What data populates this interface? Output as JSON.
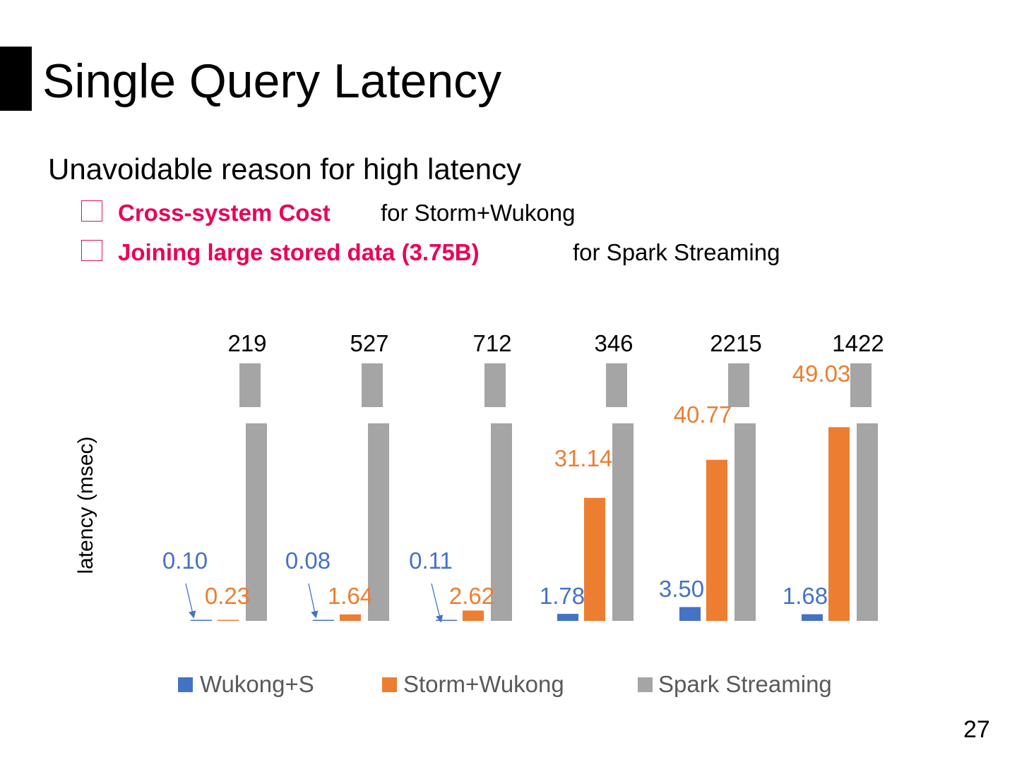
{
  "slide": {
    "title": "Single Query Latency",
    "subtitle": "Unavoidable reason for high latency",
    "bullets": [
      {
        "highlight": "Cross-system Cost",
        "text": "for Storm+Wukong"
      },
      {
        "highlight": "Joining large stored data (3.75B)",
        "text": "for Spark Streaming"
      }
    ],
    "page_number": "27"
  },
  "colors": {
    "accent": "#e8005a",
    "wukong": "#4472c4",
    "storm": "#ed7d31",
    "spark": "#a5a5a5"
  },
  "chart_data": {
    "type": "bar",
    "ylabel": "latency  (msec)",
    "xlabel": "",
    "axis_break": true,
    "categories": [
      "",
      "",
      "",
      "",
      "",
      ""
    ],
    "series": [
      {
        "name": "Wukong+S",
        "values": [
          0.1,
          0.08,
          0.11,
          1.78,
          3.5,
          1.68
        ],
        "labels": [
          "0.10",
          "0.08",
          "0.11",
          "1.78",
          "3.50",
          "1.68"
        ]
      },
      {
        "name": "Storm+Wukong",
        "values": [
          0.23,
          1.64,
          2.62,
          31.14,
          40.77,
          49.03
        ],
        "labels": [
          "0.23",
          "1.64",
          "2.62",
          "31.14",
          "40.77",
          "49.03"
        ]
      },
      {
        "name": "Spark Streaming",
        "values": [
          219,
          527,
          712,
          346,
          2215,
          1422
        ],
        "labels": [
          "219",
          "527",
          "712",
          "346",
          "2215",
          "1422"
        ]
      }
    ],
    "legend": "bottom"
  }
}
